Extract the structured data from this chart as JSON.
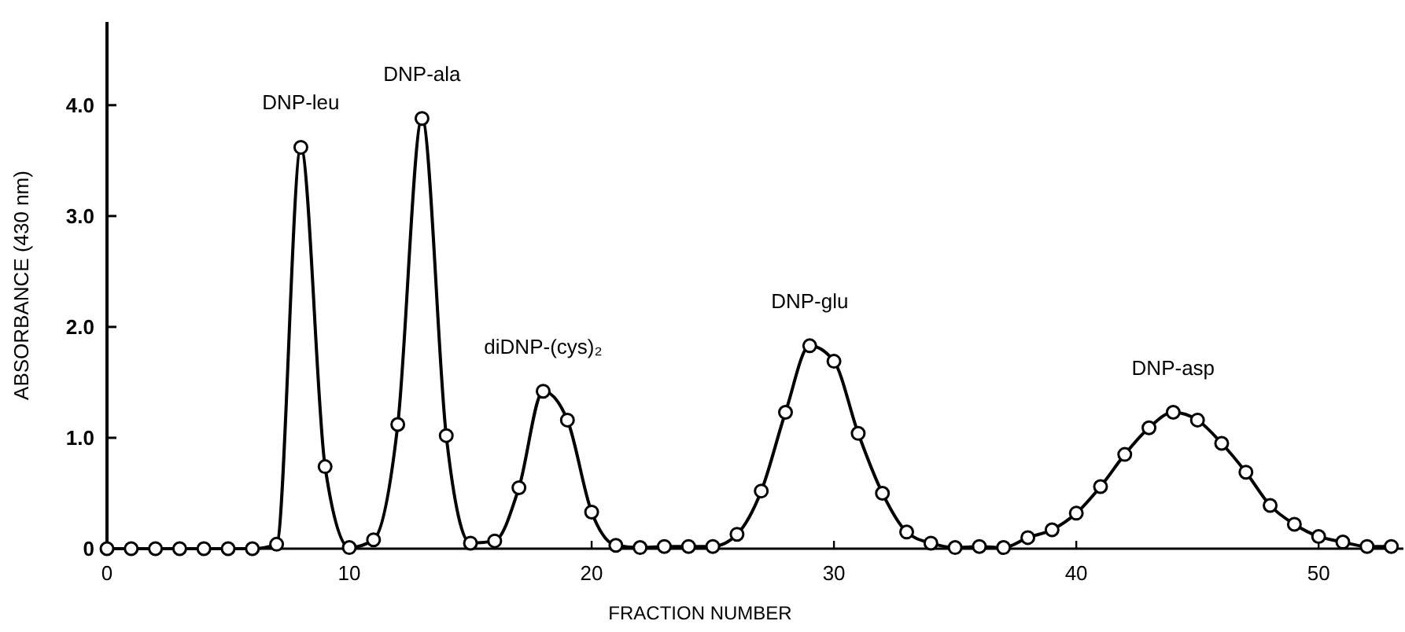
{
  "chart_data": {
    "type": "line",
    "xlabel": "FRACTION NUMBER",
    "ylabel": "ABSORBANCE (430 nm)",
    "x": [
      0,
      1,
      2,
      3,
      4,
      5,
      6,
      7,
      8,
      9,
      10,
      11,
      12,
      13,
      14,
      15,
      16,
      17,
      18,
      19,
      20,
      21,
      22,
      23,
      24,
      25,
      26,
      27,
      28,
      29,
      30,
      31,
      32,
      33,
      34,
      35,
      36,
      37,
      38,
      39,
      40,
      41,
      42,
      43,
      44,
      45,
      46,
      47,
      48,
      49,
      50,
      51,
      52,
      53
    ],
    "series": [
      {
        "color": "#000000",
        "values": [
          0,
          0,
          0,
          0,
          0,
          0,
          0,
          0.04,
          3.62,
          0.74,
          0.01,
          0.08,
          1.12,
          3.88,
          1.02,
          0.05,
          0.07,
          0.55,
          1.42,
          1.16,
          0.33,
          0.03,
          0.01,
          0.02,
          0.02,
          0.02,
          0.13,
          0.52,
          1.23,
          1.83,
          1.69,
          1.04,
          0.5,
          0.15,
          0.05,
          0.01,
          0.02,
          0.01,
          0.1,
          0.17,
          0.32,
          0.56,
          0.85,
          1.09,
          1.23,
          1.16,
          0.95,
          0.69,
          0.39,
          0.22,
          0.11,
          0.06,
          0.02,
          0.02
        ]
      }
    ],
    "xlim": [
      0,
      53.5
    ],
    "ylim": [
      0,
      4.75
    ],
    "xticks": [
      0,
      10,
      20,
      30,
      40,
      50
    ],
    "yticks": [
      0,
      {
        "value": 1,
        "label": "1.0"
      },
      {
        "value": 2,
        "label": "2.0"
      },
      {
        "value": 3,
        "label": "3.0"
      },
      {
        "value": 4,
        "label": "4.0"
      }
    ],
    "marker": "circle",
    "line_style": "solid",
    "grid": false,
    "annotations": [
      {
        "text": "DNP-leu",
        "x": 8,
        "y": 3.62
      },
      {
        "text": "DNP-ala",
        "x": 13,
        "y": 3.88
      },
      {
        "text": "diDNP-(cys)₂",
        "x": 18,
        "y": 1.42
      },
      {
        "text": "DNP-glu",
        "x": 29,
        "y": 1.83
      },
      {
        "text": "DNP-asp",
        "x": 44,
        "y": 1.23
      }
    ]
  }
}
